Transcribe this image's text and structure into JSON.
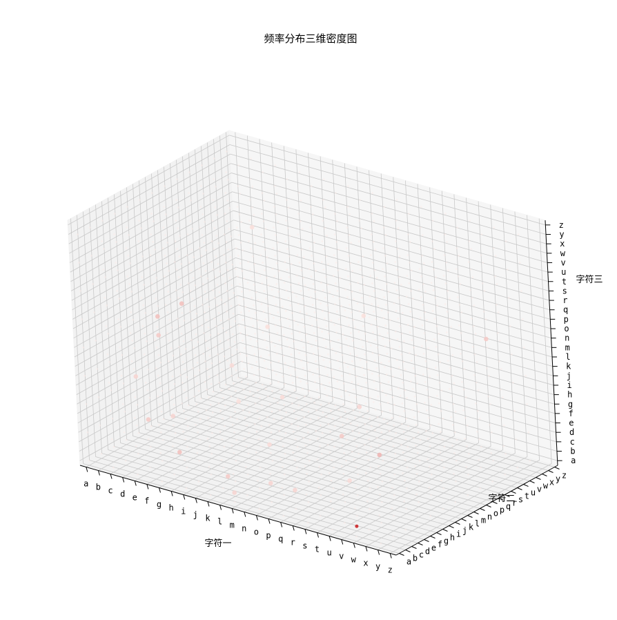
{
  "chart_data": {
    "type": "scatter",
    "projection": "3d",
    "title": "频率分布三维密度图",
    "xlabel": "字符一",
    "ylabel": "字符二",
    "zlabel": "字符三",
    "x_ticks": [
      "a",
      "b",
      "c",
      "d",
      "e",
      "f",
      "g",
      "h",
      "i",
      "j",
      "k",
      "l",
      "m",
      "n",
      "o",
      "p",
      "q",
      "r",
      "s",
      "t",
      "u",
      "v",
      "w",
      "x",
      "y",
      "z"
    ],
    "y_ticks": [
      "a",
      "b",
      "c",
      "d",
      "e",
      "f",
      "g",
      "h",
      "i",
      "j",
      "k",
      "l",
      "m",
      "n",
      "o",
      "p",
      "q",
      "r",
      "s",
      "t",
      "u",
      "v",
      "w",
      "x",
      "y",
      "z"
    ],
    "z_ticks": [
      "a",
      "b",
      "c",
      "d",
      "e",
      "f",
      "g",
      "h",
      "i",
      "j",
      "k",
      "l",
      "m",
      "n",
      "o",
      "p",
      "q",
      "r",
      "s",
      "t",
      "u",
      "v",
      "w",
      "x",
      "y",
      "z"
    ],
    "grid": true,
    "colormap": "Reds",
    "color_low": "#fff5f0",
    "color_high": "#c91a1c",
    "points": [
      {
        "x": "b",
        "y": "k",
        "z": "m",
        "v": 0.25
      },
      {
        "x": "b",
        "y": "k",
        "z": "k",
        "v": 0.2
      },
      {
        "x": "c",
        "y": "m",
        "z": "n",
        "v": 0.25
      },
      {
        "x": "a",
        "y": "i",
        "z": "g",
        "v": 0.15
      },
      {
        "x": "d",
        "y": "e",
        "z": "e",
        "v": 0.2
      },
      {
        "x": "g",
        "y": "d",
        "z": "c",
        "v": 0.25
      },
      {
        "x": "l",
        "y": "b",
        "z": "c",
        "v": 0.2
      },
      {
        "x": "o",
        "y": "c",
        "z": "c",
        "v": 0.15
      },
      {
        "x": "q",
        "y": "c",
        "z": "c",
        "v": 0.15
      },
      {
        "x": "s",
        "y": "g",
        "z": "h",
        "v": 0.2
      },
      {
        "x": "s",
        "y": "j",
        "z": "j",
        "v": 0.15
      },
      {
        "x": "u",
        "y": "i",
        "z": "f",
        "v": 0.3
      },
      {
        "x": "v",
        "y": "c",
        "z": "a",
        "v": 1.0
      },
      {
        "x": "m",
        "y": "a",
        "z": "b",
        "v": 0.15
      },
      {
        "x": "h",
        "y": "k",
        "z": "j",
        "v": 0.12
      },
      {
        "x": "i",
        "y": "o",
        "z": "m",
        "v": 0.1
      },
      {
        "x": "p",
        "y": "q",
        "z": "p",
        "v": 0.1
      },
      {
        "x": "x",
        "y": "u",
        "z": "o",
        "v": 0.2
      },
      {
        "x": "e",
        "y": "g",
        "z": "e",
        "v": 0.15
      },
      {
        "x": "k",
        "y": "m",
        "z": "g",
        "v": 0.12
      },
      {
        "x": "f",
        "y": "s",
        "z": "u",
        "v": 0.1
      },
      {
        "x": "t",
        "y": "f",
        "z": "d",
        "v": 0.12
      },
      {
        "x": "j",
        "y": "h",
        "z": "h",
        "v": 0.1
      },
      {
        "x": "n",
        "y": "e",
        "z": "f",
        "v": 0.12
      }
    ]
  }
}
